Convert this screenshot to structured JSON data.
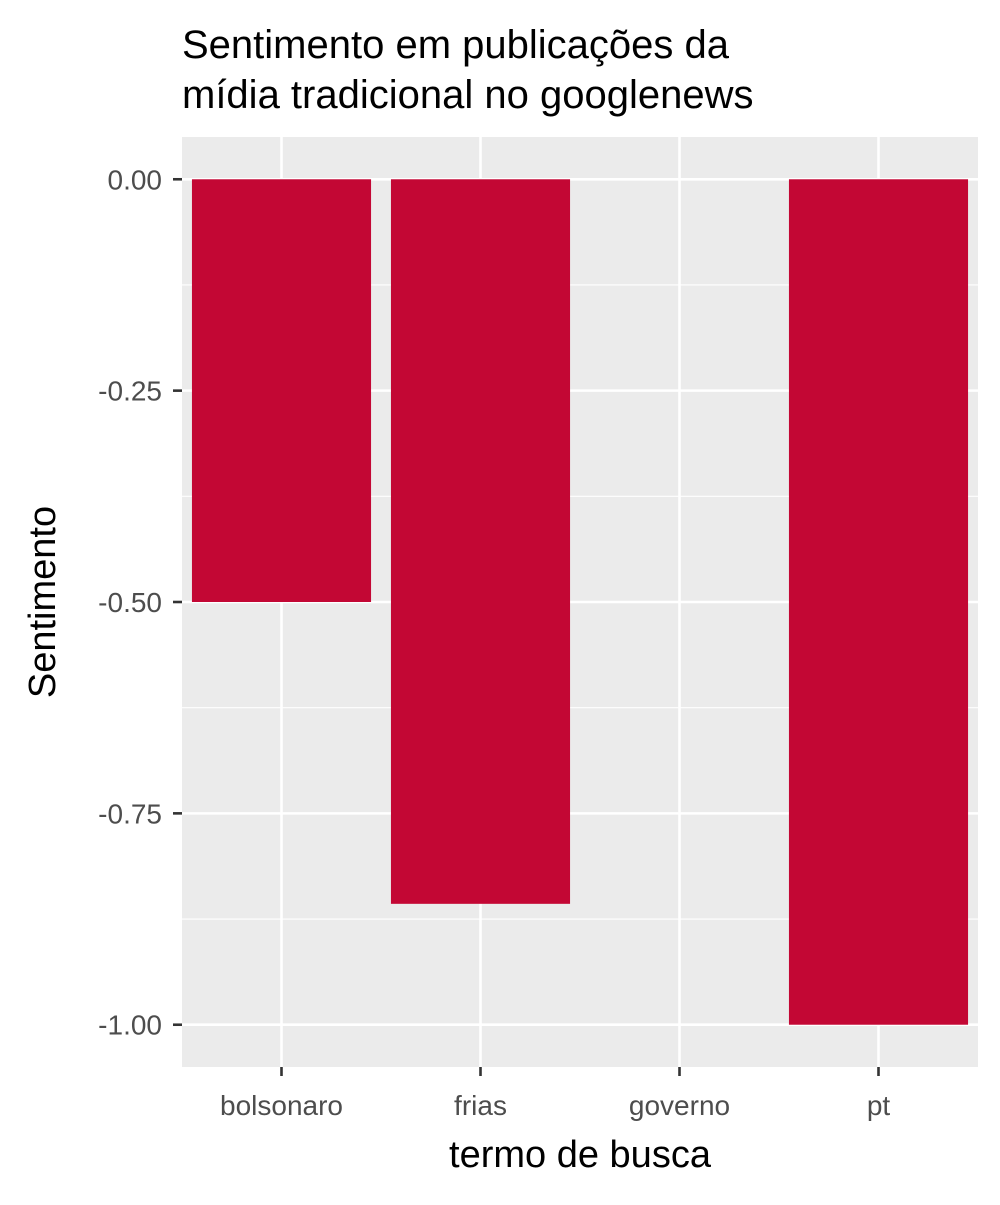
{
  "chart_data": {
    "type": "bar",
    "title_lines": [
      "Sentimento em publicações da",
      "mídia tradicional no googlenews"
    ],
    "xlabel": "termo de busca",
    "ylabel": "Sentimento",
    "categories": [
      "bolsonaro",
      "frias",
      "governo",
      "pt"
    ],
    "values": [
      -0.5,
      -0.857,
      0.0,
      -1.0
    ],
    "ylim": [
      -1.05,
      0.05
    ],
    "yticks": [
      0.0,
      -0.25,
      -0.5,
      -0.75,
      -1.0
    ],
    "ytick_labels": [
      "0.00",
      "-0.25",
      "-0.50",
      "-0.75",
      "-1.00"
    ],
    "grid": true,
    "legend": "none",
    "colors": {
      "bar": "#c30734",
      "panel_background": "#ebebeb",
      "gridline": "#ffffff",
      "tick_mark": "#333333",
      "tick_label": "#4d4d4d"
    }
  }
}
